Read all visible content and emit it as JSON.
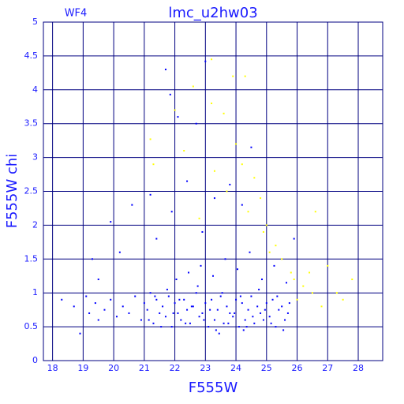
{
  "chart_data": {
    "type": "scatter",
    "title": "lmc_u2hw03",
    "subtitle": "WF4",
    "x_label": "F555W",
    "y_label": "F555W chi",
    "xlim": [
      17.7,
      28.8
    ],
    "ylim": [
      0,
      5
    ],
    "xticks": [
      18,
      19,
      20,
      21,
      22,
      23,
      24,
      25,
      26,
      27,
      28
    ],
    "yticks": [
      0,
      0.5,
      1,
      1.5,
      2,
      2.5,
      3,
      3.5,
      4,
      4.5,
      5
    ],
    "grid": true,
    "series": [
      {
        "color": "#0000ff",
        "x": [
          18.3,
          18.7,
          18.9,
          19.1,
          19.2,
          19.4,
          19.5,
          19.7,
          19.9,
          20.1,
          20.3,
          20.5,
          20.7,
          20.9,
          21.0,
          21.1,
          21.2,
          21.3,
          21.4,
          21.5,
          21.6,
          21.7,
          21.8,
          21.9,
          22.0,
          22.1,
          22.2,
          22.3,
          22.4,
          22.5,
          22.6,
          22.7,
          22.8,
          22.9,
          23.0,
          23.1,
          23.2,
          23.3,
          23.4,
          23.5,
          23.6,
          23.7,
          23.8,
          23.9,
          24.0,
          24.1,
          24.2,
          24.3,
          24.4,
          24.5,
          24.6,
          24.7,
          24.8,
          24.9,
          25.0,
          25.1,
          25.2,
          25.3,
          25.4,
          25.5,
          25.6,
          25.7,
          21.15,
          21.35,
          21.55,
          21.75,
          21.95,
          22.15,
          22.35,
          22.55,
          22.75,
          22.95,
          23.15,
          23.35,
          23.55,
          23.75,
          23.95,
          24.15,
          24.35,
          24.55,
          24.75,
          24.95,
          25.15,
          25.35,
          25.55,
          25.75,
          22.05,
          22.45,
          22.85,
          23.25,
          23.65,
          24.05,
          24.45,
          24.85,
          25.25,
          25.65,
          23.45,
          24.25,
          23.0,
          21.7,
          21.85,
          22.1,
          24.5,
          21.2,
          22.4,
          21.9,
          19.9,
          20.6,
          19.3,
          22.7,
          23.3,
          23.8,
          24.2,
          22.9,
          21.4,
          20.2,
          25.9,
          19.5
        ],
        "y": [
          0.9,
          0.8,
          0.4,
          0.95,
          0.7,
          0.85,
          0.6,
          0.75,
          0.9,
          0.65,
          0.8,
          0.7,
          0.95,
          0.6,
          0.85,
          0.75,
          1.0,
          0.55,
          0.9,
          0.7,
          0.8,
          0.65,
          0.95,
          0.5,
          0.85,
          0.7,
          0.6,
          0.9,
          0.75,
          0.55,
          0.8,
          1.0,
          0.65,
          0.7,
          0.85,
          0.5,
          0.9,
          0.6,
          0.75,
          0.95,
          0.55,
          0.8,
          0.7,
          0.65,
          0.9,
          0.5,
          0.85,
          0.6,
          0.75,
          0.95,
          0.55,
          0.8,
          0.7,
          0.6,
          0.85,
          0.65,
          0.9,
          0.5,
          0.75,
          0.8,
          0.6,
          0.7,
          0.6,
          0.95,
          0.5,
          1.05,
          0.7,
          0.9,
          0.55,
          0.8,
          1.1,
          0.6,
          0.75,
          0.45,
          1.0,
          0.55,
          0.7,
          0.95,
          0.5,
          0.65,
          1.05,
          0.75,
          0.55,
          0.95,
          0.45,
          0.85,
          1.2,
          1.3,
          1.4,
          1.25,
          1.5,
          1.35,
          1.6,
          1.2,
          1.4,
          1.15,
          0.4,
          0.45,
          4.42,
          4.3,
          3.93,
          3.6,
          3.15,
          2.45,
          2.65,
          2.2,
          2.05,
          2.3,
          1.5,
          3.5,
          2.4,
          2.6,
          2.3,
          1.9,
          1.8,
          1.6,
          1.8,
          1.2
        ]
      },
      {
        "color": "#ffff00",
        "x": [
          23.2,
          23.9,
          24.3,
          22.6,
          23.2,
          23.6,
          21.2,
          24.0,
          24.6,
          26.6,
          25.9,
          26.5,
          27.3,
          27.8,
          26.0,
          22.0,
          22.3,
          23.3,
          24.2,
          24.8,
          25.0,
          25.3,
          25.5,
          25.8,
          26.2,
          26.8,
          27.0,
          27.5,
          24.4,
          24.9,
          25.1,
          26.4,
          23.7,
          21.3,
          22.8
        ],
        "y": [
          4.45,
          4.2,
          4.2,
          4.05,
          3.8,
          3.65,
          3.27,
          3.2,
          2.7,
          2.2,
          1.2,
          1.0,
          1.0,
          1.2,
          0.9,
          3.7,
          3.1,
          2.8,
          2.9,
          2.4,
          2.0,
          1.7,
          1.5,
          1.3,
          1.1,
          0.8,
          1.4,
          0.9,
          2.2,
          1.9,
          1.6,
          1.3,
          2.5,
          2.9,
          2.1
        ]
      }
    ]
  }
}
